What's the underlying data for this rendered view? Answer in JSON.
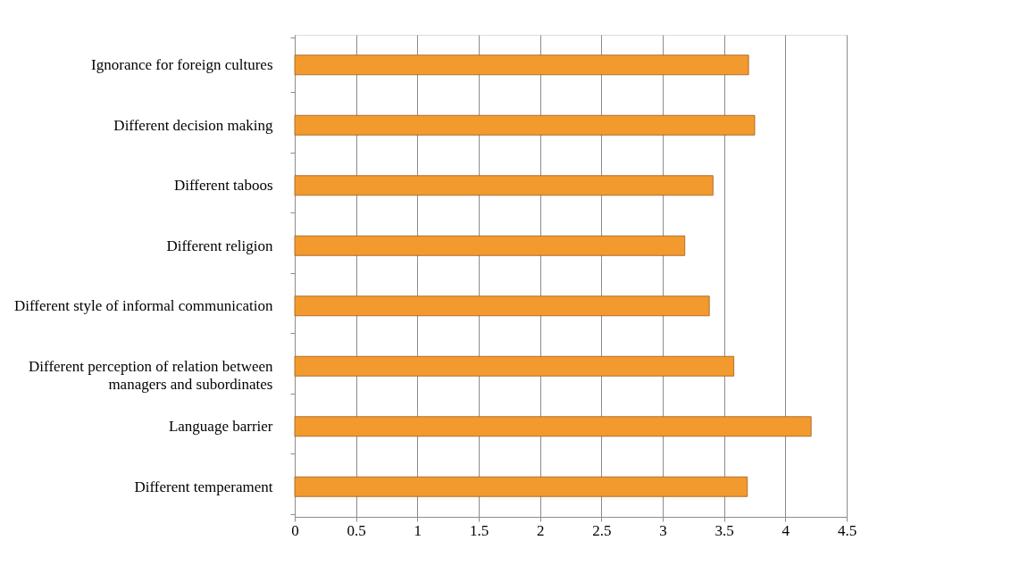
{
  "chart_data": {
    "type": "bar",
    "orientation": "horizontal",
    "categories": [
      "Ignorance for foreign cultures",
      "Different decision making",
      "Different taboos",
      "Different religion",
      "Different style of informal communication",
      "Different perception of relation between managers and subordinates",
      "Language barrier",
      "Different temperament"
    ],
    "values": [
      3.7,
      3.75,
      3.41,
      3.18,
      3.38,
      3.58,
      4.21,
      3.69
    ],
    "color": "#f39a2e",
    "xlim": [
      0,
      4.5
    ],
    "xticks": [
      0,
      0.5,
      1,
      1.5,
      2,
      2.5,
      3,
      3.5,
      4,
      4.5
    ],
    "grid": "x"
  }
}
